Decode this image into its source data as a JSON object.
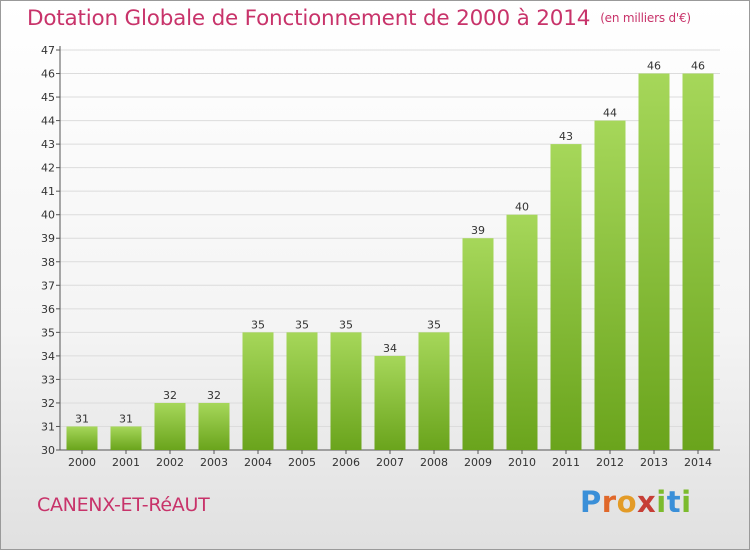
{
  "title": "Dotation Globale de Fonctionnement de 2000 à 2014",
  "subtitle": "(en milliers d'€)",
  "commune": "CANENX-ET-RéAUT",
  "logo": [
    "P",
    "r",
    "o",
    "x",
    "i",
    "t",
    "i"
  ],
  "colors": {
    "title": "#c8336a",
    "bar_light": "#a6d75a",
    "bar_dark": "#6aa41c",
    "grid": "#dcdcdc"
  },
  "chart_data": {
    "type": "bar",
    "title": "Dotation Globale de Fonctionnement de 2000 à 2014",
    "subtitle": "(en milliers d'€)",
    "xlabel": "",
    "ylabel": "",
    "categories": [
      "2000",
      "2001",
      "2002",
      "2003",
      "2004",
      "2005",
      "2006",
      "2007",
      "2008",
      "2009",
      "2010",
      "2011",
      "2012",
      "2013",
      "2014"
    ],
    "values": [
      31,
      31,
      32,
      32,
      35,
      35,
      35,
      34,
      35,
      39,
      40,
      43,
      44,
      46,
      46
    ],
    "ylim": [
      30,
      47
    ],
    "yticks": [
      30,
      31,
      32,
      33,
      34,
      35,
      36,
      37,
      38,
      39,
      40,
      41,
      42,
      43,
      44,
      45,
      46,
      47
    ],
    "grid": true
  }
}
